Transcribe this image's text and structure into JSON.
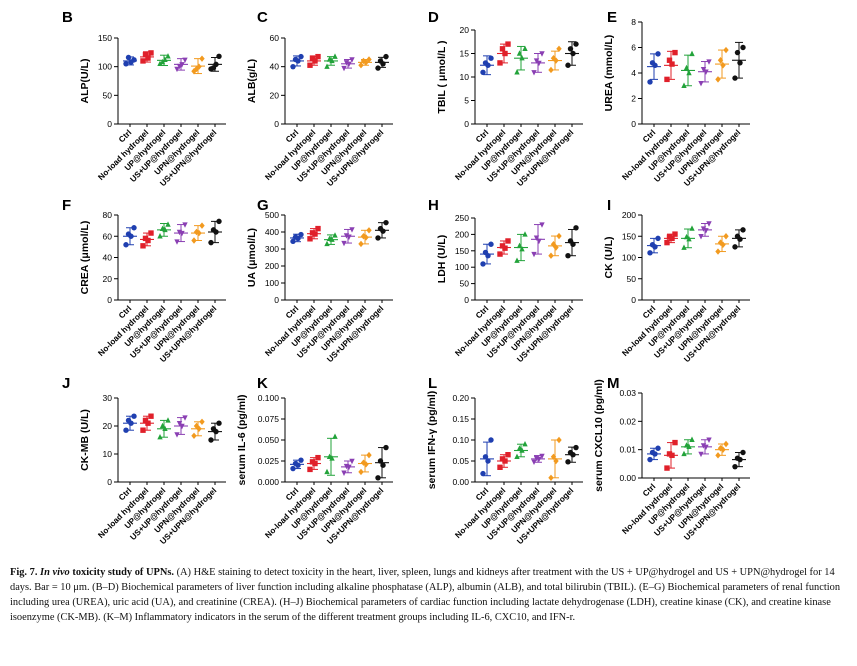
{
  "chart_data": [
    {
      "type": "scatter",
      "panel": "B",
      "ylabel": "ALP(U/L)",
      "ylim": [
        0,
        150
      ],
      "yticks": [
        "0",
        "50",
        "100",
        "150"
      ],
      "categories": [
        "Ctrl",
        "No-load hydrogel",
        "UP@hydrogel",
        "US+UP@hydrogel",
        "UPN@hydrogel",
        "US+UPN@hydrogel"
      ],
      "series": [
        {
          "mean": 110,
          "sd": 7,
          "points": [
            105,
            112,
            108,
            116
          ]
        },
        {
          "mean": 117,
          "sd": 9,
          "points": [
            110,
            124,
            115,
            121
          ]
        },
        {
          "mean": 111,
          "sd": 9,
          "points": [
            105,
            118,
            112,
            108
          ]
        },
        {
          "mean": 104,
          "sd": 10,
          "points": [
            96,
            112,
            104,
            101
          ]
        },
        {
          "mean": 101,
          "sd": 13,
          "points": [
            92,
            114,
            100,
            96
          ]
        },
        {
          "mean": 104,
          "sd": 12,
          "points": [
            96,
            118,
            104,
            98
          ]
        }
      ]
    },
    {
      "type": "scatter",
      "panel": "C",
      "ylabel": "ALB(g/L)",
      "ylim": [
        0,
        60
      ],
      "yticks": [
        "0",
        "20",
        "40",
        "60"
      ],
      "categories": [
        "Ctrl",
        "No-load hydrogel",
        "UP@hydrogel",
        "US+UP@hydrogel",
        "UPN@hydrogel",
        "US+UPN@hydrogel"
      ],
      "series": [
        {
          "mean": 44,
          "sd": 3.5,
          "points": [
            40,
            47,
            44,
            45
          ]
        },
        {
          "mean": 44,
          "sd": 3,
          "points": [
            41,
            47,
            44,
            46
          ]
        },
        {
          "mean": 44,
          "sd": 3,
          "points": [
            40,
            47,
            44,
            45
          ]
        },
        {
          "mean": 42,
          "sd": 3,
          "points": [
            39,
            45,
            42,
            43
          ]
        },
        {
          "mean": 43,
          "sd": 2,
          "points": [
            41,
            45,
            43,
            44
          ]
        },
        {
          "mean": 43,
          "sd": 3.5,
          "points": [
            39,
            47,
            42,
            44
          ]
        }
      ]
    },
    {
      "type": "scatter",
      "panel": "D",
      "ylabel": "TBIL ( μmol/L )",
      "ylim": [
        0,
        20
      ],
      "yticks": [
        "0",
        "5",
        "10",
        "15",
        "20"
      ],
      "categories": [
        "Ctrl",
        "No-load hydrogel",
        "UP@hydrogel",
        "US+UP@hydrogel",
        "UPN@hydrogel",
        "US+UPN@hydrogel"
      ],
      "series": [
        {
          "mean": 12.5,
          "sd": 2,
          "points": [
            11,
            14,
            12.5,
            13
          ]
        },
        {
          "mean": 15,
          "sd": 2,
          "points": [
            13,
            17,
            15,
            16
          ]
        },
        {
          "mean": 14,
          "sd": 2.5,
          "points": [
            11,
            16,
            14,
            15
          ]
        },
        {
          "mean": 13,
          "sd": 2,
          "points": [
            11,
            15,
            13,
            13.5
          ]
        },
        {
          "mean": 13.5,
          "sd": 2,
          "points": [
            11.5,
            16,
            13.5,
            14
          ]
        },
        {
          "mean": 15,
          "sd": 2.5,
          "points": [
            12.5,
            17,
            15,
            16
          ]
        }
      ]
    },
    {
      "type": "scatter",
      "panel": "E",
      "ylabel": "UREA (mmol/L)",
      "ylim": [
        0,
        8
      ],
      "yticks": [
        "0",
        "2",
        "4",
        "6",
        "8"
      ],
      "categories": [
        "Ctrl",
        "No-load hydrogel",
        "UP@hydrogel",
        "US+UP@hydrogel",
        "UPN@hydrogel",
        "US+UPN@hydrogel"
      ],
      "series": [
        {
          "mean": 4.5,
          "sd": 1,
          "points": [
            3.3,
            5.5,
            4.6,
            4.8
          ]
        },
        {
          "mean": 4.6,
          "sd": 1.1,
          "points": [
            3.5,
            5.6,
            4.7,
            5
          ]
        },
        {
          "mean": 4.2,
          "sd": 1.2,
          "points": [
            3,
            5.5,
            4,
            4.4
          ]
        },
        {
          "mean": 4.1,
          "sd": 0.8,
          "points": [
            3.2,
            4.9,
            4.1,
            4.3
          ]
        },
        {
          "mean": 4.7,
          "sd": 1.1,
          "points": [
            3.5,
            5.8,
            4.6,
            5
          ]
        },
        {
          "mean": 5,
          "sd": 1.4,
          "points": [
            3.6,
            6,
            4.8,
            5.6
          ]
        }
      ]
    },
    {
      "type": "scatter",
      "panel": "F",
      "ylabel": "CREA (μmol/L)",
      "ylim": [
        0,
        80
      ],
      "yticks": [
        "0",
        "20",
        "40",
        "60",
        "80"
      ],
      "categories": [
        "Ctrl",
        "No-load hydrogel",
        "UP@hydrogel",
        "US+UP@hydrogel",
        "UPN@hydrogel",
        "US+UPN@hydrogel"
      ],
      "series": [
        {
          "mean": 60,
          "sd": 8,
          "points": [
            52,
            68,
            60,
            62
          ]
        },
        {
          "mean": 57,
          "sd": 6,
          "points": [
            51,
            63,
            56,
            58
          ]
        },
        {
          "mean": 66,
          "sd": 6,
          "points": [
            60,
            71,
            66,
            67
          ]
        },
        {
          "mean": 63,
          "sd": 8,
          "points": [
            55,
            71,
            63,
            64
          ]
        },
        {
          "mean": 63,
          "sd": 7,
          "points": [
            56,
            70,
            63,
            64
          ]
        },
        {
          "mean": 64,
          "sd": 10,
          "points": [
            54,
            74,
            64,
            66
          ]
        }
      ]
    },
    {
      "type": "scatter",
      "panel": "G",
      "ylabel": "UA (μmol/L)",
      "ylim": [
        0,
        500
      ],
      "yticks": [
        "0",
        "100",
        "200",
        "300",
        "400",
        "500"
      ],
      "categories": [
        "Ctrl",
        "No-load hydrogel",
        "UP@hydrogel",
        "US+UP@hydrogel",
        "UPN@hydrogel",
        "US+UPN@hydrogel"
      ],
      "series": [
        {
          "mean": 365,
          "sd": 22,
          "points": [
            345,
            385,
            362,
            370
          ]
        },
        {
          "mean": 390,
          "sd": 30,
          "points": [
            360,
            420,
            388,
            395
          ]
        },
        {
          "mean": 355,
          "sd": 28,
          "points": [
            330,
            380,
            355,
            360
          ]
        },
        {
          "mean": 375,
          "sd": 40,
          "points": [
            335,
            415,
            372,
            380
          ]
        },
        {
          "mean": 370,
          "sd": 40,
          "points": [
            330,
            410,
            368,
            375
          ]
        },
        {
          "mean": 410,
          "sd": 45,
          "points": [
            365,
            455,
            405,
            420
          ]
        }
      ]
    },
    {
      "type": "scatter",
      "panel": "H",
      "ylabel": "LDH (U/L)",
      "ylim": [
        0,
        250
      ],
      "yticks": [
        "0",
        "50",
        "100",
        "150",
        "200",
        "250"
      ],
      "categories": [
        "Ctrl",
        "No-load hydrogel",
        "UP@hydrogel",
        "US+UP@hydrogel",
        "UPN@hydrogel",
        "US+UPN@hydrogel"
      ],
      "series": [
        {
          "mean": 140,
          "sd": 30,
          "points": [
            110,
            170,
            135,
            145
          ]
        },
        {
          "mean": 160,
          "sd": 20,
          "points": [
            140,
            180,
            158,
            165
          ]
        },
        {
          "mean": 160,
          "sd": 40,
          "points": [
            120,
            200,
            155,
            165
          ]
        },
        {
          "mean": 185,
          "sd": 45,
          "points": [
            140,
            230,
            180,
            190
          ]
        },
        {
          "mean": 165,
          "sd": 30,
          "points": [
            135,
            195,
            160,
            170
          ]
        },
        {
          "mean": 175,
          "sd": 40,
          "points": [
            135,
            220,
            170,
            180
          ]
        }
      ]
    },
    {
      "type": "scatter",
      "panel": "I",
      "ylabel": "CK (U/L)",
      "ylim": [
        0,
        200
      ],
      "yticks": [
        "0",
        "50",
        "100",
        "150",
        "200"
      ],
      "categories": [
        "Ctrl",
        "No-load hydrogel",
        "UP@hydrogel",
        "US+UP@hydrogel",
        "UPN@hydrogel",
        "US+UPN@hydrogel"
      ],
      "series": [
        {
          "mean": 128,
          "sd": 17,
          "points": [
            111,
            145,
            125,
            130
          ]
        },
        {
          "mean": 145,
          "sd": 10,
          "points": [
            135,
            155,
            145,
            148
          ]
        },
        {
          "mean": 145,
          "sd": 22,
          "points": [
            123,
            168,
            143,
            148
          ]
        },
        {
          "mean": 165,
          "sd": 15,
          "points": [
            150,
            180,
            164,
            168
          ]
        },
        {
          "mean": 132,
          "sd": 18,
          "points": [
            114,
            150,
            130,
            135
          ]
        },
        {
          "mean": 145,
          "sd": 20,
          "points": [
            125,
            165,
            143,
            150
          ]
        }
      ]
    },
    {
      "type": "scatter",
      "panel": "J",
      "ylabel": "CK-MB (U/L)",
      "ylim": [
        0,
        30
      ],
      "yticks": [
        "0",
        "10",
        "20",
        "30"
      ],
      "categories": [
        "Ctrl",
        "No-load hydrogel",
        "UP@hydrogel",
        "US+UP@hydrogel",
        "UPN@hydrogel",
        "US+UPN@hydrogel"
      ],
      "series": [
        {
          "mean": 21,
          "sd": 2.5,
          "points": [
            18.5,
            23.5,
            21,
            22
          ]
        },
        {
          "mean": 21,
          "sd": 2.5,
          "points": [
            18.5,
            23.5,
            21,
            22
          ]
        },
        {
          "mean": 19,
          "sd": 3,
          "points": [
            16,
            22,
            19,
            20
          ]
        },
        {
          "mean": 20,
          "sd": 3,
          "points": [
            17,
            23,
            20,
            21
          ]
        },
        {
          "mean": 19,
          "sd": 2.5,
          "points": [
            16.5,
            21.5,
            19,
            20
          ]
        },
        {
          "mean": 18,
          "sd": 3,
          "points": [
            15,
            21,
            18,
            19
          ]
        }
      ]
    },
    {
      "type": "scatter",
      "panel": "K",
      "ylabel": "serum IL-6 (pg/ml)",
      "ylim": [
        0,
        0.1
      ],
      "yticks": [
        "0.000",
        "0.025",
        "0.050",
        "0.075",
        "0.100"
      ],
      "categories": [
        "Ctrl",
        "No-load hydrogel",
        "UP@hydrogel",
        "US+UP@hydrogel",
        "UPN@hydrogel",
        "US+UPN@hydrogel"
      ],
      "series": [
        {
          "mean": 0.021,
          "sd": 0.005,
          "points": [
            0.016,
            0.026,
            0.02,
            0.022
          ]
        },
        {
          "mean": 0.022,
          "sd": 0.007,
          "points": [
            0.015,
            0.029,
            0.022,
            0.024
          ]
        },
        {
          "mean": 0.03,
          "sd": 0.022,
          "points": [
            0.012,
            0.054,
            0.028,
            0.03
          ]
        },
        {
          "mean": 0.018,
          "sd": 0.007,
          "points": [
            0.011,
            0.025,
            0.018,
            0.019
          ]
        },
        {
          "mean": 0.022,
          "sd": 0.01,
          "points": [
            0.012,
            0.032,
            0.021,
            0.023
          ]
        },
        {
          "mean": 0.023,
          "sd": 0.018,
          "points": [
            0.005,
            0.041,
            0.02,
            0.025
          ]
        }
      ]
    },
    {
      "type": "scatter",
      "panel": "L",
      "ylabel": "serum IFN-γ (pg/ml)",
      "ylim": [
        0,
        0.2
      ],
      "yticks": [
        "0.00",
        "0.05",
        "0.10",
        "0.15",
        "0.20"
      ],
      "categories": [
        "Ctrl",
        "No-load hydrogel",
        "UP@hydrogel",
        "US+UP@hydrogel",
        "UPN@hydrogel",
        "US+UPN@hydrogel"
      ],
      "series": [
        {
          "mean": 0.055,
          "sd": 0.04,
          "points": [
            0.02,
            0.1,
            0.05,
            0.06
          ]
        },
        {
          "mean": 0.05,
          "sd": 0.015,
          "points": [
            0.035,
            0.065,
            0.05,
            0.055
          ]
        },
        {
          "mean": 0.075,
          "sd": 0.015,
          "points": [
            0.06,
            0.09,
            0.075,
            0.08
          ]
        },
        {
          "mean": 0.055,
          "sd": 0.008,
          "points": [
            0.048,
            0.062,
            0.055,
            0.057
          ]
        },
        {
          "mean": 0.055,
          "sd": 0.045,
          "points": [
            0.01,
            0.1,
            0.05,
            0.06
          ]
        },
        {
          "mean": 0.065,
          "sd": 0.018,
          "points": [
            0.048,
            0.082,
            0.065,
            0.07
          ]
        }
      ]
    },
    {
      "type": "scatter",
      "panel": "M",
      "ylabel": "serum CXCL10 (pg/ml)",
      "ylim": [
        0,
        0.03
      ],
      "yticks": [
        "0.00",
        "0.01",
        "0.02",
        "0.03"
      ],
      "categories": [
        "Ctrl",
        "No-load hydrogel",
        "UP@hydrogel",
        "US+UP@hydrogel",
        "UPN@hydrogel",
        "US+UPN@hydrogel"
      ],
      "series": [
        {
          "mean": 0.0085,
          "sd": 0.002,
          "points": [
            0.0065,
            0.0105,
            0.0085,
            0.009
          ]
        },
        {
          "mean": 0.008,
          "sd": 0.0045,
          "points": [
            0.0035,
            0.0125,
            0.008,
            0.0085
          ]
        },
        {
          "mean": 0.011,
          "sd": 0.0025,
          "points": [
            0.0085,
            0.0135,
            0.011,
            0.0115
          ]
        },
        {
          "mean": 0.011,
          "sd": 0.0025,
          "points": [
            0.0085,
            0.0135,
            0.011,
            0.0115
          ]
        },
        {
          "mean": 0.01,
          "sd": 0.002,
          "points": [
            0.008,
            0.012,
            0.01,
            0.0105
          ]
        },
        {
          "mean": 0.0065,
          "sd": 0.0025,
          "points": [
            0.004,
            0.009,
            0.0065,
            0.007
          ]
        }
      ]
    }
  ],
  "group_colors": [
    "#1f3fb0",
    "#e0202a",
    "#22a33a",
    "#8a3fb3",
    "#f29a1f",
    "#111111"
  ],
  "caption": {
    "head": "Fig. 7.",
    "italic": "In vivo",
    "title_rest": "toxicity study of UPNs.",
    "body": "(A) H&E staining to detect toxicity in the heart, liver, spleen, lungs and kidneys after treatment with the US + UP@hydrogel and US + UPN@hydrogel for 14 days. Bar = 10 μm. (B–D) Biochemical parameters of liver function including alkaline phosphatase (ALP), albumin (ALB), and total bilirubin (TBIL). (E–G) Biochemical parameters of renal function including urea (UREA), uric acid (UA), and creatinine (CREA). (H–J) Biochemical parameters of cardiac function including lactate dehydrogenase (LDH), creatine kinase (CK), and creatine kinase isoenzyme (CK-MB). (K–M) Inflammatory indicators in the serum of the different treatment groups including IL-6, CXC10, and IFN-r."
  }
}
